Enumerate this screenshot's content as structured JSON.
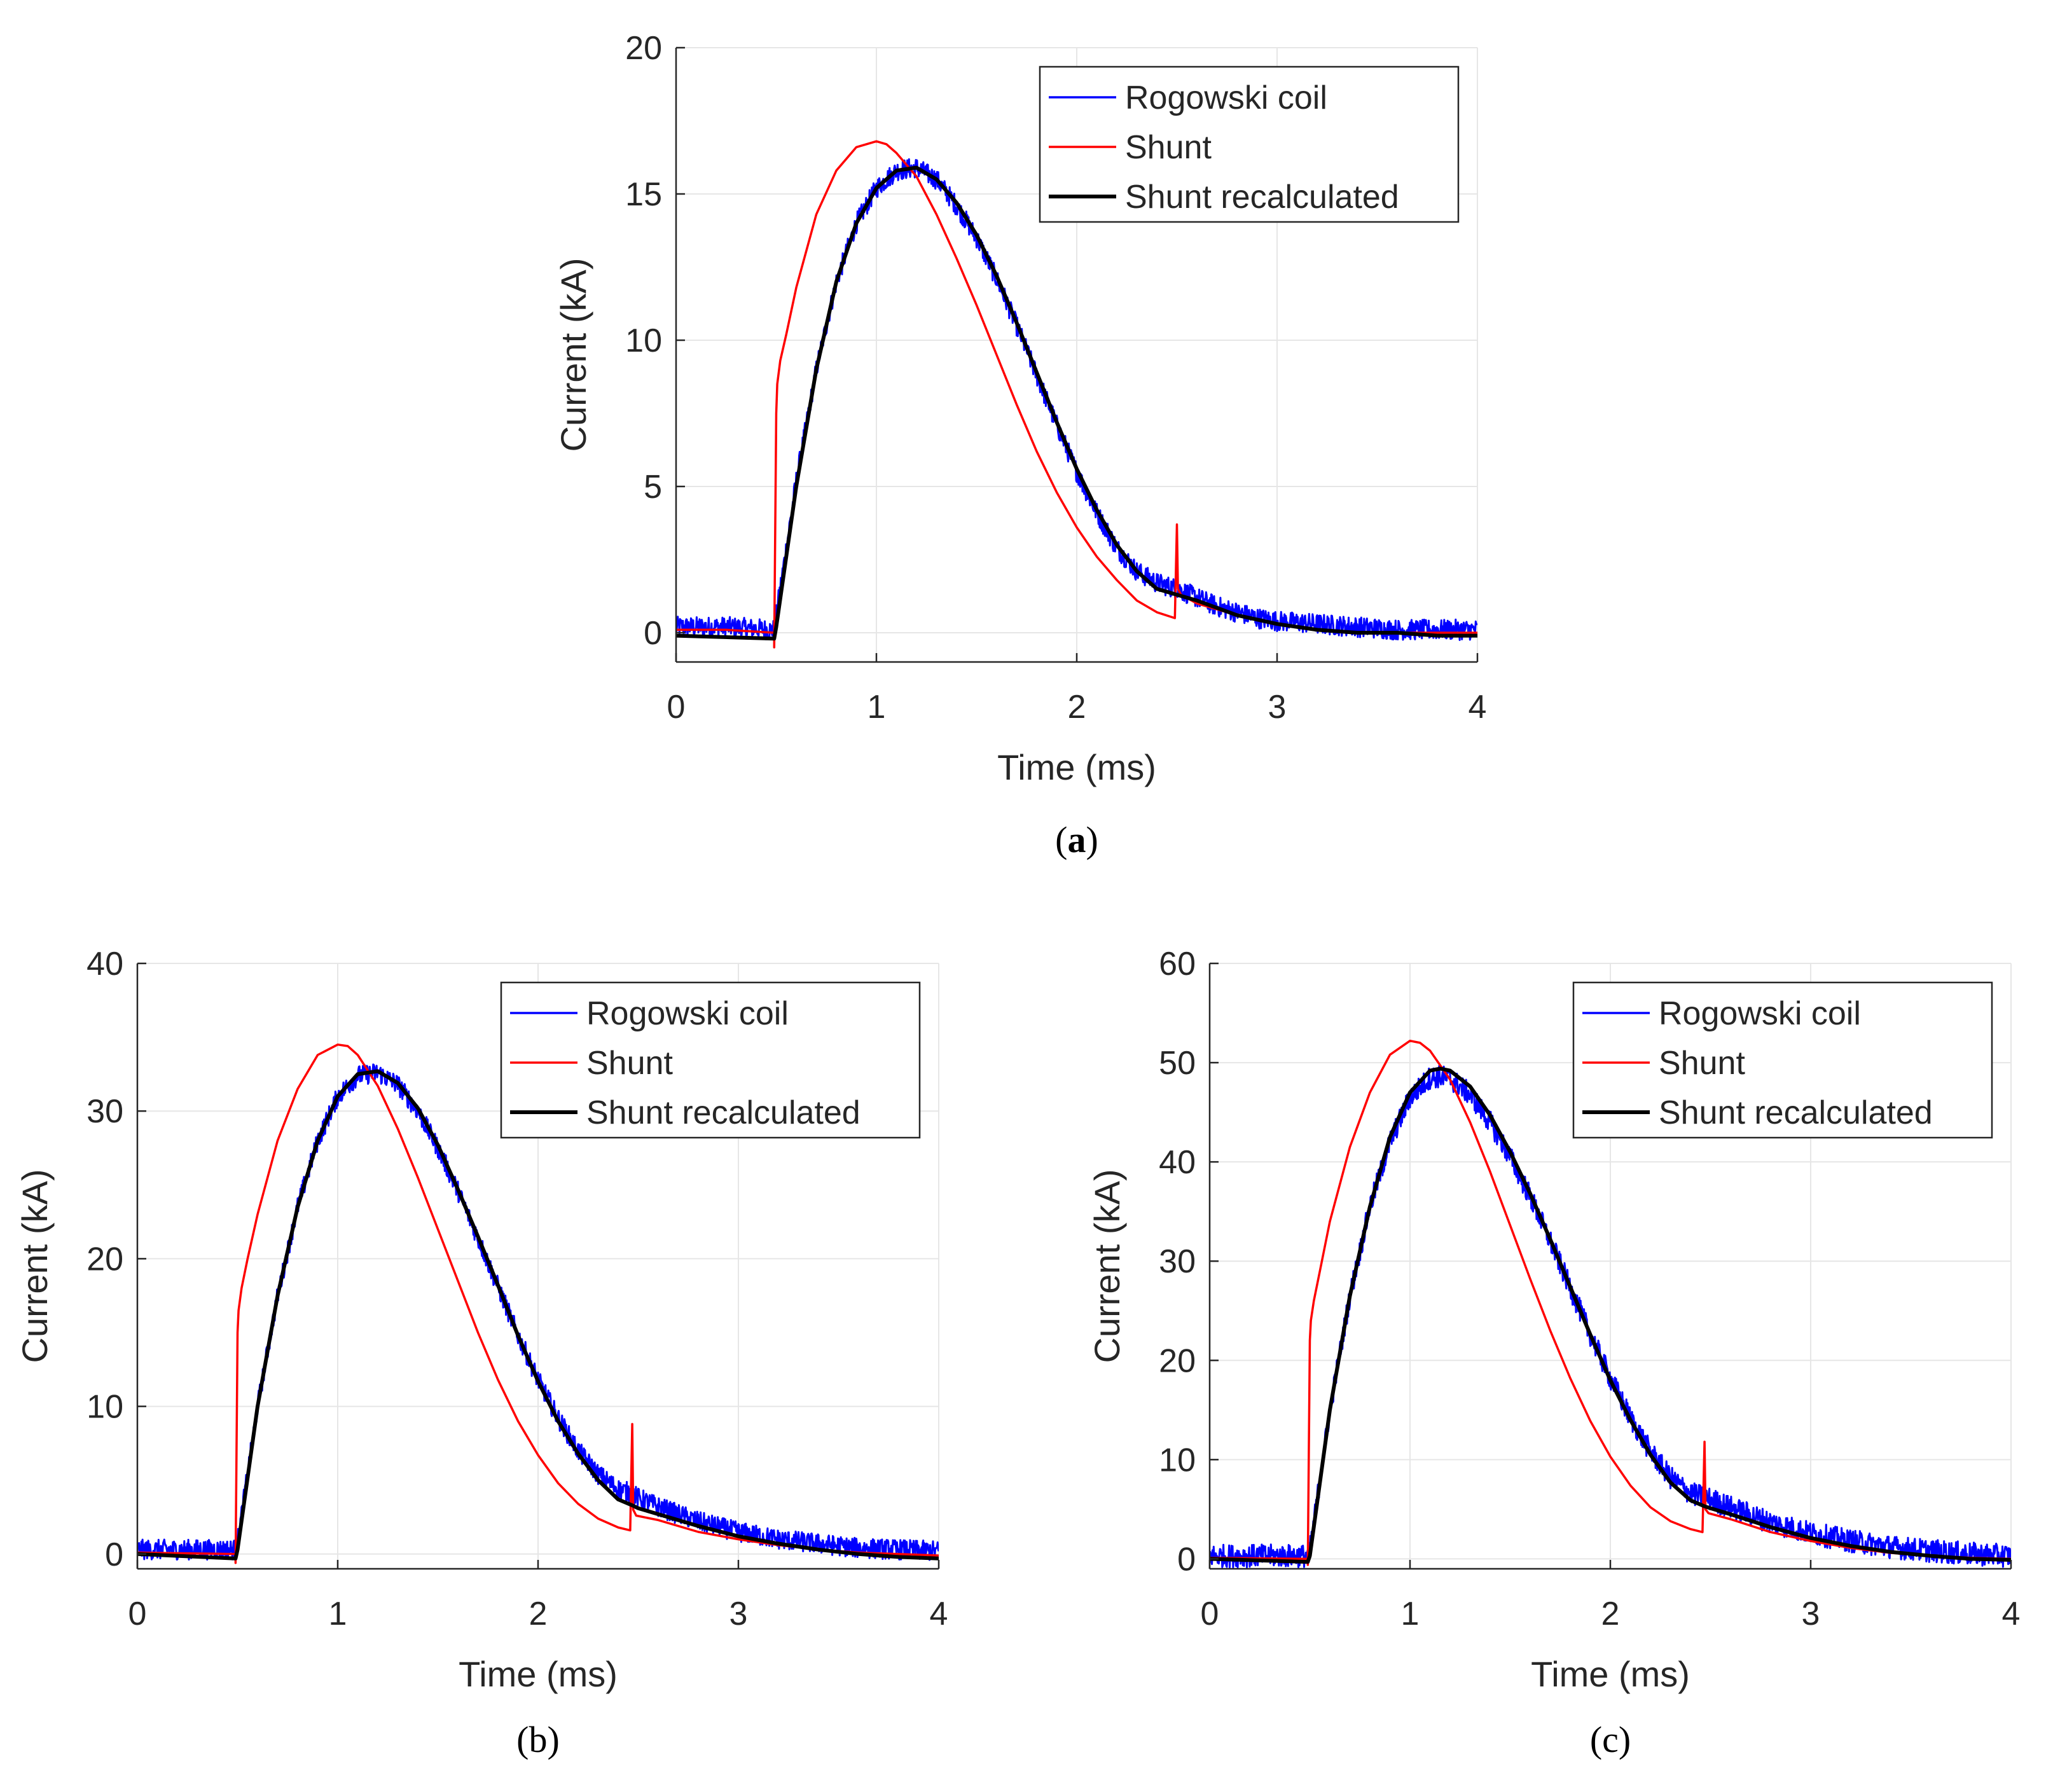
{
  "colors": {
    "rogowski": "#0000ff",
    "shunt": "#ff0000",
    "recalculated": "#000000"
  },
  "chart_data": [
    {
      "id": "a",
      "type": "line",
      "caption": "(a)",
      "caption_bold": "a",
      "title": "",
      "xlabel": "Time (ms)",
      "ylabel": "Current (kA)",
      "xlim": [
        0,
        4
      ],
      "ylim": [
        -1,
        20
      ],
      "xticks": [
        0,
        1,
        2,
        3,
        4
      ],
      "yticks": [
        0,
        5,
        10,
        15,
        20
      ],
      "grid": true,
      "legend_position": "top-right",
      "series": [
        {
          "name": "Rogowski coil",
          "color_key": "rogowski",
          "noisy": true,
          "noise": 0.35,
          "x": [
            0,
            0.25,
            0.49,
            0.5,
            0.6,
            0.7,
            0.8,
            0.9,
            1.0,
            1.1,
            1.2,
            1.3,
            1.4,
            1.5,
            1.6,
            1.7,
            1.8,
            1.9,
            2.0,
            2.1,
            2.2,
            2.3,
            2.4,
            2.5,
            2.6,
            2.7,
            2.8,
            2.9,
            3.0,
            3.2,
            3.4,
            3.6,
            3.8,
            4.0
          ],
          "y": [
            0.2,
            0.2,
            0.1,
            0.6,
            5.2,
            9.0,
            12.0,
            14.0,
            15.2,
            15.8,
            15.9,
            15.5,
            14.6,
            13.5,
            12.1,
            10.5,
            8.8,
            7.1,
            5.5,
            4.1,
            2.9,
            2.1,
            1.7,
            1.5,
            1.2,
            0.9,
            0.7,
            0.5,
            0.4,
            0.3,
            0.2,
            0.1,
            0.1,
            0.1
          ]
        },
        {
          "name": "Shunt",
          "color_key": "shunt",
          "noisy": false,
          "x": [
            0,
            0.25,
            0.49,
            0.49,
            0.5,
            0.505,
            0.52,
            0.55,
            0.6,
            0.7,
            0.8,
            0.9,
            1.0,
            1.05,
            1.1,
            1.2,
            1.3,
            1.4,
            1.5,
            1.6,
            1.7,
            1.8,
            1.9,
            2.0,
            2.1,
            2.2,
            2.3,
            2.4,
            2.49,
            2.5,
            2.505,
            2.52,
            2.6,
            2.8,
            3.0,
            3.2,
            3.4,
            3.6,
            3.8,
            4.0
          ],
          "y": [
            0.1,
            0.1,
            0.0,
            -0.5,
            7.5,
            8.5,
            9.3,
            10.2,
            11.8,
            14.3,
            15.8,
            16.6,
            16.8,
            16.7,
            16.4,
            15.6,
            14.3,
            12.8,
            11.2,
            9.5,
            7.8,
            6.2,
            4.8,
            3.6,
            2.6,
            1.8,
            1.1,
            0.7,
            0.5,
            3.7,
            1.5,
            1.3,
            1.0,
            0.6,
            0.3,
            0.1,
            0.0,
            0.0,
            0.0,
            0.0
          ]
        },
        {
          "name": "Shunt recalculated",
          "color_key": "recalculated",
          "noisy": false,
          "x": [
            0,
            0.49,
            0.5,
            0.6,
            0.7,
            0.8,
            0.9,
            1.0,
            1.1,
            1.2,
            1.3,
            1.4,
            1.5,
            1.6,
            1.7,
            1.8,
            1.9,
            2.0,
            2.1,
            2.2,
            2.3,
            2.4,
            2.5,
            2.6,
            2.8,
            3.0,
            3.2,
            3.4,
            3.6,
            3.8,
            4.0
          ],
          "y": [
            -0.1,
            -0.2,
            0.2,
            5.0,
            9.0,
            12.0,
            14.0,
            15.2,
            15.8,
            15.9,
            15.5,
            14.7,
            13.6,
            12.2,
            10.6,
            8.9,
            7.2,
            5.6,
            4.2,
            3.0,
            2.1,
            1.5,
            1.3,
            1.1,
            0.6,
            0.3,
            0.1,
            0.0,
            0.0,
            -0.1,
            -0.1
          ]
        }
      ]
    },
    {
      "id": "b",
      "type": "line",
      "caption": "(b)",
      "title": "",
      "xlabel": "Time (ms)",
      "ylabel": "Current (kA)",
      "xlim": [
        0,
        4
      ],
      "ylim": [
        -1,
        40
      ],
      "xticks": [
        0,
        1,
        2,
        3,
        4
      ],
      "yticks": [
        0,
        10,
        20,
        30,
        40
      ],
      "grid": true,
      "legend_position": "top-right",
      "series": [
        {
          "name": "Rogowski coil",
          "color_key": "rogowski",
          "noisy": true,
          "noise": 0.35,
          "x": [
            0,
            0.49,
            0.5,
            0.6,
            0.7,
            0.8,
            0.9,
            1.0,
            1.1,
            1.2,
            1.3,
            1.4,
            1.5,
            1.6,
            1.7,
            1.8,
            1.9,
            2.0,
            2.1,
            2.2,
            2.3,
            2.4,
            2.47,
            2.5,
            2.6,
            2.8,
            3.0,
            3.2,
            3.4,
            3.6,
            3.8,
            4.0
          ],
          "y": [
            0.3,
            0.3,
            0.8,
            10.0,
            17.5,
            23.5,
            28.0,
            31.0,
            32.4,
            32.6,
            31.8,
            30.0,
            27.5,
            24.6,
            21.4,
            18.1,
            14.8,
            11.8,
            9.2,
            7.0,
            5.4,
            4.4,
            4.1,
            3.8,
            3.2,
            2.2,
            1.5,
            1.0,
            0.7,
            0.4,
            0.3,
            0.2
          ]
        },
        {
          "name": "Shunt",
          "color_key": "shunt",
          "noisy": false,
          "x": [
            0,
            0.49,
            0.49,
            0.5,
            0.505,
            0.52,
            0.55,
            0.6,
            0.7,
            0.8,
            0.9,
            1.0,
            1.05,
            1.1,
            1.2,
            1.3,
            1.4,
            1.5,
            1.6,
            1.7,
            1.8,
            1.9,
            2.0,
            2.1,
            2.2,
            2.3,
            2.4,
            2.46,
            2.47,
            2.475,
            2.49,
            2.6,
            2.8,
            3.0,
            3.2,
            3.4,
            3.6,
            3.8,
            4.0
          ],
          "y": [
            0.1,
            0.0,
            -0.6,
            15.0,
            16.5,
            18.0,
            20.0,
            23.0,
            28.0,
            31.5,
            33.8,
            34.5,
            34.4,
            33.8,
            31.7,
            28.8,
            25.5,
            22.0,
            18.5,
            15.0,
            11.8,
            9.0,
            6.7,
            4.8,
            3.4,
            2.4,
            1.8,
            1.6,
            8.8,
            3.0,
            2.6,
            2.3,
            1.5,
            1.0,
            0.6,
            0.3,
            0.1,
            0.0,
            -0.1
          ]
        },
        {
          "name": "Shunt recalculated",
          "color_key": "recalculated",
          "noisy": false,
          "x": [
            0,
            0.49,
            0.5,
            0.6,
            0.7,
            0.8,
            0.9,
            1.0,
            1.1,
            1.2,
            1.3,
            1.4,
            1.5,
            1.6,
            1.7,
            1.8,
            1.9,
            2.0,
            2.1,
            2.2,
            2.3,
            2.4,
            2.47,
            2.5,
            2.6,
            2.8,
            3.0,
            3.2,
            3.4,
            3.6,
            3.8,
            4.0
          ],
          "y": [
            0.0,
            -0.3,
            0.3,
            10.0,
            17.5,
            23.5,
            28.0,
            31.0,
            32.5,
            32.7,
            31.9,
            30.2,
            27.7,
            24.7,
            21.5,
            18.2,
            14.8,
            11.7,
            9.0,
            6.8,
            5.0,
            3.7,
            3.3,
            3.1,
            2.7,
            1.9,
            1.2,
            0.7,
            0.3,
            0.0,
            -0.2,
            -0.3
          ]
        }
      ]
    },
    {
      "id": "c",
      "type": "line",
      "caption": "(c)",
      "title": "",
      "xlabel": "Time (ms)",
      "ylabel": "Current (kA)",
      "xlim": [
        0,
        4
      ],
      "ylim": [
        -1,
        60
      ],
      "xticks": [
        0,
        1,
        2,
        3,
        4
      ],
      "yticks": [
        0,
        10,
        20,
        30,
        40,
        50,
        60
      ],
      "grid": true,
      "legend_position": "top-right",
      "series": [
        {
          "name": "Rogowski coil",
          "color_key": "rogowski",
          "noisy": true,
          "noise": 0.4,
          "x": [
            0,
            0.49,
            0.5,
            0.6,
            0.7,
            0.8,
            0.9,
            1.0,
            1.1,
            1.15,
            1.2,
            1.3,
            1.4,
            1.5,
            1.6,
            1.7,
            1.8,
            1.9,
            2.0,
            2.1,
            2.2,
            2.3,
            2.4,
            2.47,
            2.5,
            2.6,
            2.8,
            3.0,
            3.2,
            3.4,
            3.6,
            3.8,
            4.0
          ],
          "y": [
            0.3,
            0.3,
            0.8,
            15.0,
            26.5,
            35.5,
            42.0,
            46.5,
            48.5,
            48.6,
            48.4,
            46.8,
            44.0,
            40.5,
            36.5,
            32.0,
            27.3,
            22.6,
            18.2,
            14.2,
            10.8,
            8.2,
            6.6,
            6.2,
            6.0,
            5.2,
            3.7,
            2.6,
            1.8,
            1.2,
            0.8,
            0.5,
            0.3
          ]
        },
        {
          "name": "Shunt",
          "color_key": "shunt",
          "noisy": false,
          "x": [
            0,
            0.49,
            0.49,
            0.5,
            0.505,
            0.52,
            0.55,
            0.6,
            0.7,
            0.8,
            0.9,
            1.0,
            1.05,
            1.1,
            1.2,
            1.3,
            1.4,
            1.5,
            1.6,
            1.7,
            1.8,
            1.9,
            2.0,
            2.1,
            2.2,
            2.3,
            2.4,
            2.46,
            2.47,
            2.475,
            2.49,
            2.6,
            2.8,
            3.0,
            3.2,
            3.4,
            3.6,
            3.8,
            4.0
          ],
          "y": [
            0.1,
            0.0,
            -0.6,
            22.0,
            24.0,
            26.0,
            29.0,
            34.0,
            41.5,
            47.0,
            50.8,
            52.2,
            52.0,
            51.2,
            48.3,
            44.0,
            39.0,
            33.6,
            28.2,
            23.0,
            18.2,
            13.9,
            10.3,
            7.4,
            5.2,
            3.8,
            3.0,
            2.7,
            11.8,
            5.0,
            4.6,
            4.0,
            2.7,
            1.8,
            1.1,
            0.6,
            0.3,
            0.1,
            0.0
          ]
        },
        {
          "name": "Shunt recalculated",
          "color_key": "recalculated",
          "noisy": false,
          "x": [
            0,
            0.49,
            0.5,
            0.6,
            0.7,
            0.8,
            0.9,
            1.0,
            1.1,
            1.15,
            1.2,
            1.3,
            1.4,
            1.5,
            1.6,
            1.7,
            1.8,
            1.9,
            2.0,
            2.1,
            2.2,
            2.3,
            2.4,
            2.47,
            2.5,
            2.6,
            2.8,
            3.0,
            3.2,
            3.4,
            3.6,
            3.8,
            4.0
          ],
          "y": [
            0.0,
            -0.3,
            0.3,
            15.0,
            26.5,
            35.5,
            42.5,
            47.0,
            49.2,
            49.4,
            49.2,
            47.6,
            44.7,
            41.0,
            36.8,
            32.2,
            27.4,
            22.6,
            18.0,
            14.0,
            10.5,
            7.7,
            5.9,
            5.3,
            5.1,
            4.5,
            3.2,
            2.1,
            1.3,
            0.7,
            0.3,
            0.0,
            -0.1
          ]
        }
      ]
    }
  ]
}
